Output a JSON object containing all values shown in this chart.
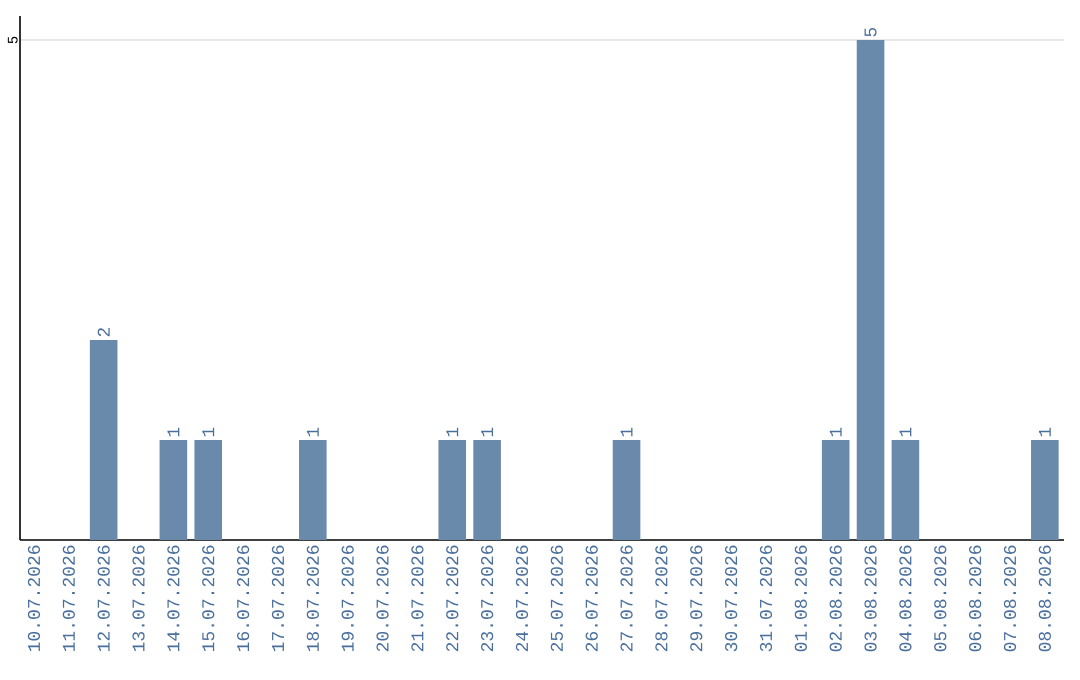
{
  "chart_data": {
    "type": "bar",
    "categories": [
      "10.07.2026",
      "11.07.2026",
      "12.07.2026",
      "13.07.2026",
      "14.07.2026",
      "15.07.2026",
      "16.07.2026",
      "17.07.2026",
      "18.07.2026",
      "19.07.2026",
      "20.07.2026",
      "21.07.2026",
      "22.07.2026",
      "23.07.2026",
      "24.07.2026",
      "25.07.2026",
      "26.07.2026",
      "27.07.2026",
      "28.07.2026",
      "29.07.2026",
      "30.07.2026",
      "31.07.2026",
      "01.08.2026",
      "02.08.2026",
      "03.08.2026",
      "04.08.2026",
      "05.08.2026",
      "06.08.2026",
      "07.08.2026",
      "08.08.2026"
    ],
    "values": [
      0,
      0,
      2,
      0,
      1,
      1,
      0,
      0,
      1,
      0,
      0,
      0,
      1,
      1,
      0,
      0,
      0,
      1,
      0,
      0,
      0,
      0,
      0,
      1,
      5,
      1,
      0,
      0,
      0,
      1
    ],
    "value_labels": [
      null,
      null,
      "2",
      null,
      "1",
      "1",
      null,
      null,
      "1",
      null,
      null,
      null,
      "1",
      "1",
      null,
      null,
      null,
      "1",
      null,
      null,
      null,
      null,
      null,
      "1",
      "5",
      "1",
      null,
      null,
      null,
      "1"
    ],
    "color": "#6a8aab",
    "ylim": [
      0,
      5.24
    ],
    "yticks": [
      5
    ],
    "grid": "y"
  }
}
